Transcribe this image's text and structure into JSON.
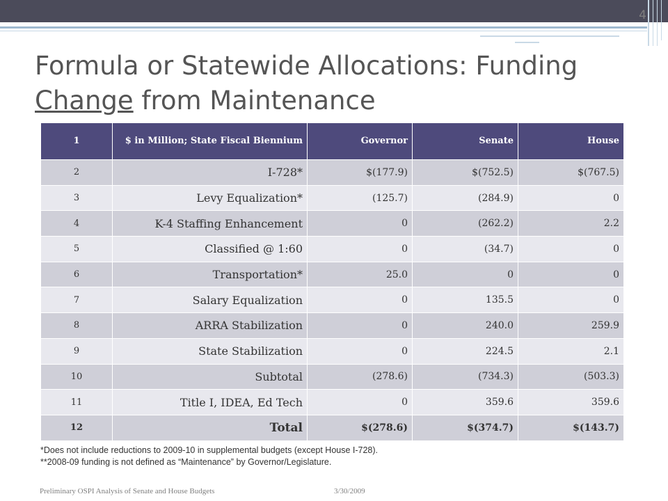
{
  "slide": {
    "number": "4"
  },
  "title": {
    "part1": "Formula or Statewide Allocations: Funding ",
    "underlined": "Change",
    "part2": " from Maintenance"
  },
  "table": {
    "headers": [
      "1",
      "$ in Million; State Fiscal Biennium",
      "Governor",
      "Senate",
      "House"
    ],
    "rows": [
      {
        "num": "2",
        "item": "I-728*",
        "governor": "$(177.9)",
        "senate": "$(752.5)",
        "house": "$(767.5)"
      },
      {
        "num": "3",
        "item": "Levy Equalization*",
        "governor": "(125.7)",
        "senate": "(284.9)",
        "house": "0"
      },
      {
        "num": "4",
        "item": "K-4 Staffing Enhancement",
        "governor": "0",
        "senate": "(262.2)",
        "house": "2.2"
      },
      {
        "num": "5",
        "item": "Classified @ 1:60",
        "governor": "0",
        "senate": "(34.7)",
        "house": "0"
      },
      {
        "num": "6",
        "item": "Transportation*",
        "governor": "25.0",
        "senate": "0",
        "house": "0"
      },
      {
        "num": "7",
        "item": "Salary Equalization",
        "governor": "0",
        "senate": "135.5",
        "house": "0"
      },
      {
        "num": "8",
        "item": "ARRA Stabilization",
        "governor": "0",
        "senate": "240.0",
        "house": "259.9"
      },
      {
        "num": "9",
        "item": "State Stabilization",
        "governor": "0",
        "senate": "224.5",
        "house": "2.1"
      },
      {
        "num": "10",
        "item": "Subtotal",
        "governor": "(278.6)",
        "senate": "(734.3)",
        "house": "(503.3)"
      },
      {
        "num": "11",
        "item": "Title I, IDEA, Ed Tech",
        "governor": "0",
        "senate": "359.6",
        "house": "359.6"
      },
      {
        "num": "12",
        "item": "Total",
        "governor": "$(278.6)",
        "senate": "$(374.7)",
        "house": "$(143.7)"
      }
    ]
  },
  "footnotes": [
    "*Does not include reductions to 2009-10 in supplemental budgets (except House I-728).",
    "**2008-09 funding is not defined as “Maintenance” by Governor/Legislature."
  ],
  "footer": {
    "left": "Preliminary OSPI Analysis of Senate and House Budgets",
    "date": "3/30/2009"
  },
  "colors": {
    "header_bg": "#4e4a7c",
    "row_odd": "#cfcfd8",
    "row_even": "#e8e8ee",
    "top_bar": "#4b4b5a",
    "accent_line": "#9fb9cf"
  }
}
